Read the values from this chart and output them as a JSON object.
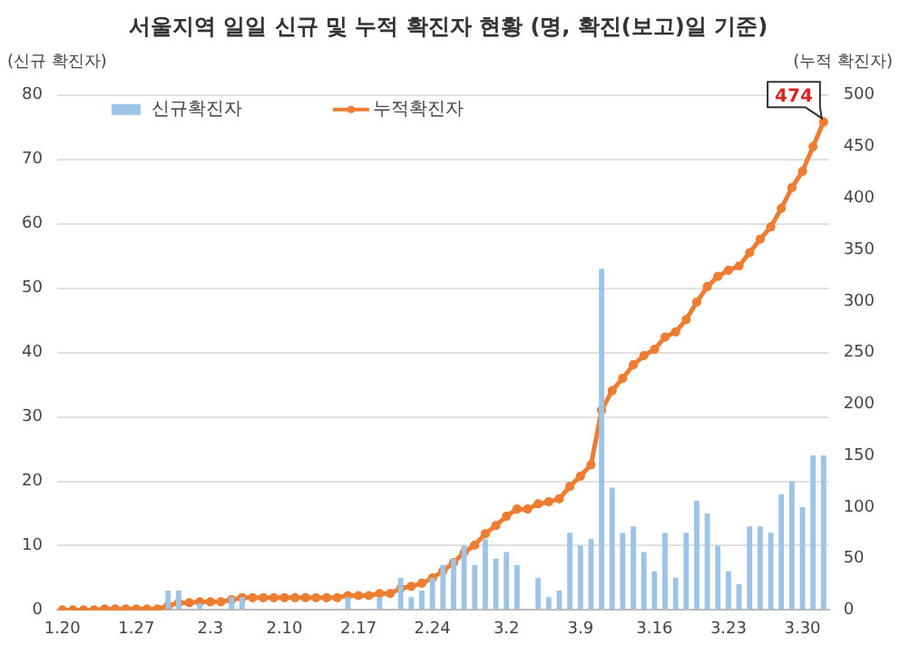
{
  "chart_data": {
    "type": "bar",
    "title": "서울지역 일일 신규 및 누적 확진자 현황 (명, 확진(보고)일 기준)",
    "ylabel": "(신규 확진자)",
    "y2label": "(누적 확진자)",
    "categories": [
      "1.20",
      null,
      null,
      null,
      null,
      null,
      null,
      "1.27",
      null,
      null,
      null,
      null,
      null,
      null,
      "2.3",
      null,
      null,
      null,
      null,
      null,
      null,
      "2.10",
      null,
      null,
      null,
      null,
      null,
      null,
      "2.17",
      null,
      null,
      null,
      null,
      null,
      null,
      "2.24",
      null,
      null,
      null,
      null,
      null,
      null,
      "3.2",
      null,
      null,
      null,
      null,
      null,
      null,
      "3.9",
      null,
      null,
      null,
      null,
      null,
      null,
      "3.16",
      null,
      null,
      null,
      null,
      null,
      null,
      "3.23",
      null,
      null,
      null,
      null,
      null,
      null,
      "3.30",
      null,
      null
    ],
    "series": [
      {
        "name": "신규확진자",
        "color": "#9dc3e6",
        "values": [
          0,
          0,
          0,
          0,
          0,
          0,
          0,
          0,
          0,
          0,
          3,
          3,
          0,
          1,
          0,
          0,
          2,
          2,
          0,
          0,
          0,
          0,
          0,
          0,
          0,
          0,
          0,
          2,
          0,
          0,
          2,
          0,
          5,
          2,
          3,
          5,
          7,
          8,
          10,
          7,
          11,
          8,
          9,
          7,
          0,
          5,
          2,
          3,
          12,
          10,
          11,
          53,
          19,
          12,
          13,
          9,
          6,
          12,
          5,
          12,
          17,
          15,
          10,
          6,
          4,
          13,
          13,
          12,
          18,
          20,
          16,
          24,
          24
        ]
      },
      {
        "name": "누적확진자",
        "type": "line",
        "axis": "y2",
        "color": "#ed7d31",
        "values": [
          0,
          0,
          0,
          0,
          1,
          1,
          1,
          1,
          1,
          1,
          4,
          7,
          7,
          8,
          8,
          8,
          10,
          12,
          12,
          12,
          12,
          12,
          12,
          12,
          12,
          12,
          12,
          14,
          14,
          14,
          16,
          16,
          21,
          23,
          26,
          31,
          38,
          46,
          56,
          63,
          74,
          82,
          91,
          98,
          98,
          103,
          105,
          108,
          120,
          130,
          141,
          194,
          213,
          225,
          238,
          247,
          253,
          265,
          270,
          282,
          299,
          314,
          324,
          330,
          334,
          347,
          360,
          372,
          390,
          410,
          426,
          450,
          474
        ]
      }
    ],
    "ylim": [
      0,
      80
    ],
    "yticks": [
      0,
      10,
      20,
      30,
      40,
      50,
      60,
      70,
      80
    ],
    "y2lim": [
      0,
      500
    ],
    "y2ticks": [
      0,
      50,
      100,
      150,
      200,
      250,
      300,
      350,
      400,
      450,
      500
    ],
    "grid": "y",
    "legend": "top left",
    "marker": "circle",
    "annotations": [
      "474"
    ]
  }
}
